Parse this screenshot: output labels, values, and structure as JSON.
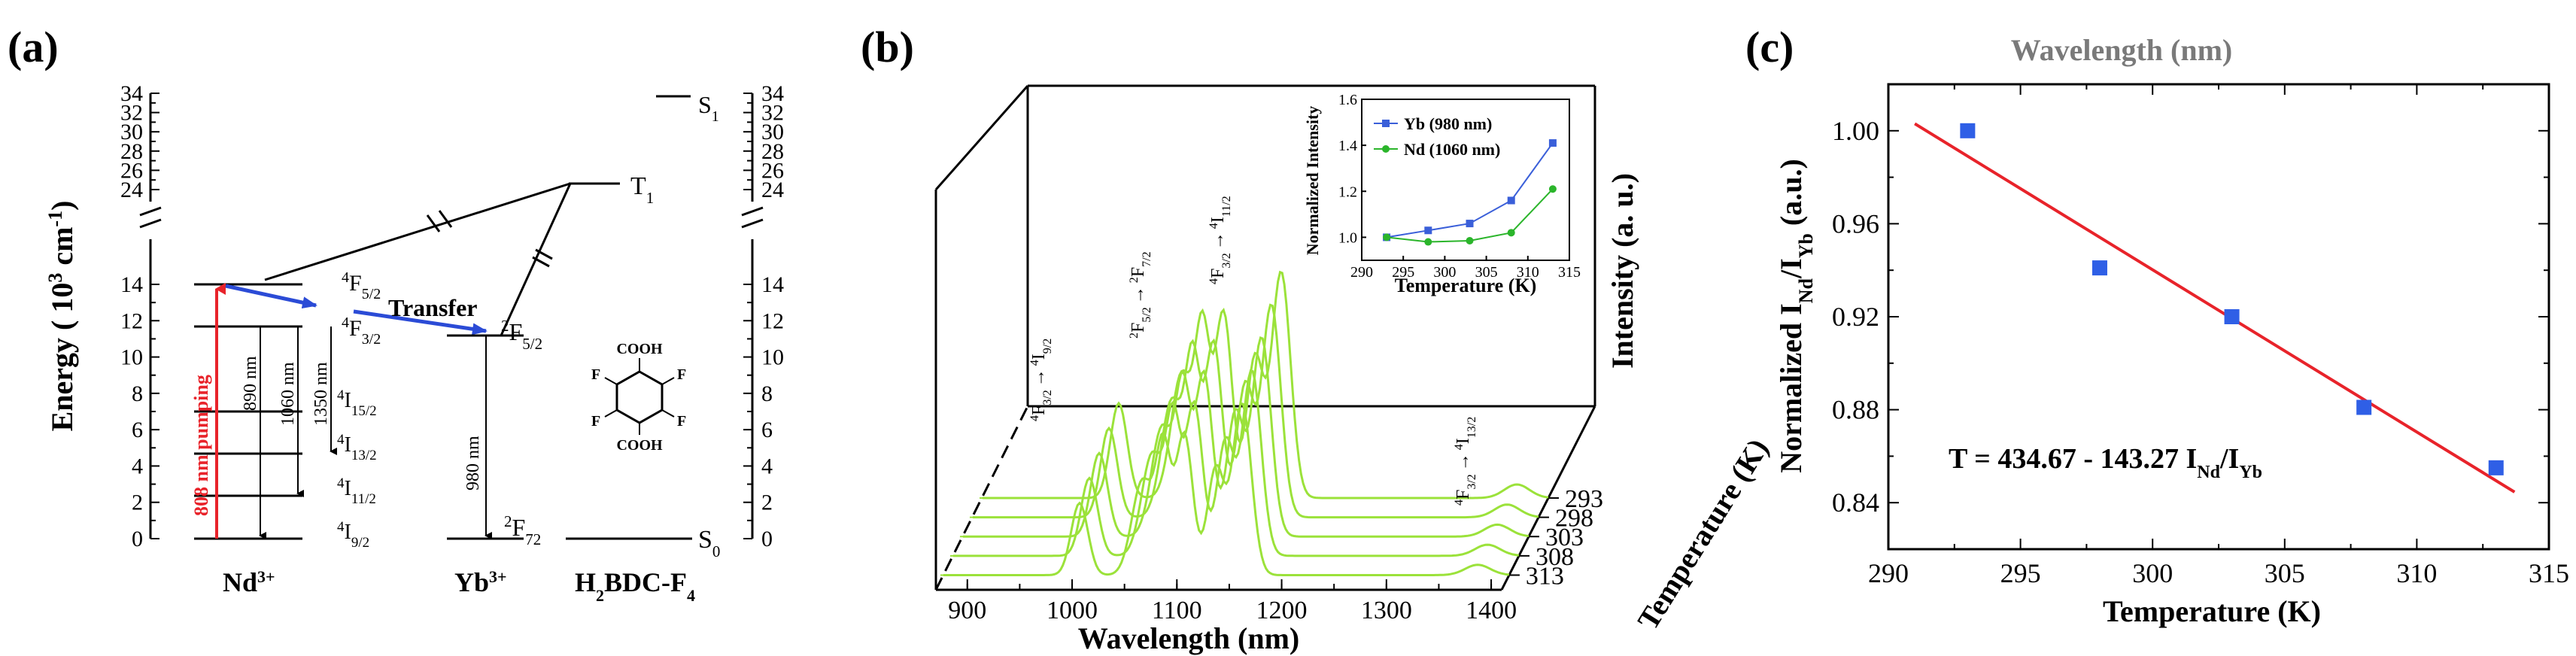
{
  "panel_a": {
    "letter": "(a)",
    "y_label": "Energy ( 10",
    "y_label_exp": "3",
    "y_label_unit": " cm",
    "y_label_unit_exp": "-1",
    "y_label_close": ")",
    "ticks_low": [
      "0",
      "2",
      "4",
      "6",
      "8",
      "10",
      "12",
      "14"
    ],
    "ticks_high": [
      "24",
      "26",
      "28",
      "30",
      "32",
      "34"
    ],
    "pump_label": "808 nm pumping",
    "emission_labels": [
      "890 nm",
      "1060 nm",
      "1350 nm"
    ],
    "yb_emission_label": "980 nm",
    "transfer_label": "Transfer",
    "nd_levels": [
      {
        "base": "4",
        "main": "F",
        "sub": "5/2"
      },
      {
        "base": "4",
        "main": "F",
        "sub": "3/2"
      },
      {
        "base": "4",
        "main": "I",
        "sub": "15/2"
      },
      {
        "base": "4",
        "main": "I",
        "sub": "13/2"
      },
      {
        "base": "4",
        "main": "I",
        "sub": "11/2"
      },
      {
        "base": "4",
        "main": "I",
        "sub": "9/2"
      }
    ],
    "yb_levels": [
      {
        "base": "2",
        "main": "F",
        "sub": "5/2"
      },
      {
        "base": "2",
        "main": "F",
        "sub": "72"
      }
    ],
    "ligand_levels": [
      {
        "main": "S",
        "sub": "1"
      },
      {
        "main": "T",
        "sub": "1"
      },
      {
        "main": "S",
        "sub": "0"
      }
    ],
    "species": [
      {
        "main": "Nd",
        "sup": "3+"
      },
      {
        "main": "Yb",
        "sup": "3+"
      },
      {
        "main": "H",
        "sub": "2",
        "rest": "BDC-F",
        "sub2": "4"
      }
    ],
    "molecule": {
      "acid_group": "COOH",
      "atom": "F"
    }
  },
  "panel_b": {
    "letter": "(b)",
    "x_label": "Wavelength (nm)",
    "x_ticks": [
      "900",
      "1000",
      "1100",
      "1200",
      "1300",
      "1400"
    ],
    "z_label": "Temperature (K)",
    "z_ticks": [
      "293",
      "298",
      "303",
      "308",
      "313"
    ],
    "y_label": "Intensity (a. u.)",
    "transitions": [
      {
        "from_base": "4",
        "from_main": "F",
        "from_sub": "3/2",
        "to_base": "4",
        "to_main": "I",
        "to_sub": "9/2"
      },
      {
        "from_base": "2",
        "from_main": "F",
        "from_sub": "5/2",
        "to_base": "2",
        "to_main": "F",
        "to_sub": "7/2"
      },
      {
        "from_base": "4",
        "from_main": "F",
        "from_sub": "3/2",
        "to_base": "4",
        "to_main": "I",
        "to_sub": "11/2"
      },
      {
        "from_base": "4",
        "from_main": "F",
        "from_sub": "3/2",
        "to_base": "4",
        "to_main": "I",
        "to_sub": "13/2"
      }
    ],
    "arrow": "→",
    "line_color": "#9be23a",
    "inset": {
      "x_label": "Temperature  (K)",
      "y_label": "Normalized Intensity",
      "x_ticks": [
        "290",
        "295",
        "300",
        "305",
        "310",
        "315"
      ],
      "y_ticks": [
        "1.0",
        "1.2",
        "1.4",
        "1.6"
      ]
    }
  },
  "panel_c": {
    "letter": "(c)",
    "top_label": "Wavelength (nm)",
    "y_label_main": "Normalized I",
    "y_label_sub1": "Nd",
    "y_label_mid": "/I",
    "y_label_sub2": "Yb",
    "y_label_end": " (a.u.)",
    "equation_main": "T = 434.67 - 143.27 I",
    "equation_sub1": "Nd",
    "equation_mid": "/I",
    "equation_sub2": "Yb"
  },
  "chart_data": [
    {
      "type": "scatter",
      "panel": "b-inset",
      "title": "",
      "xlabel": "Temperature  (K)",
      "ylabel": "Normalized Intensity",
      "xlim": [
        290,
        315
      ],
      "ylim": [
        0.9,
        1.6
      ],
      "series": [
        {
          "name": "Yb (980 nm)",
          "color": "#3a5fd9",
          "marker": "square",
          "x": [
            293,
            298,
            303,
            308,
            313
          ],
          "values": [
            1.0,
            1.03,
            1.06,
            1.16,
            1.41
          ]
        },
        {
          "name": "Nd (1060 nm)",
          "color": "#2bb52b",
          "marker": "circle",
          "x": [
            293,
            298,
            303,
            308,
            313
          ],
          "values": [
            1.0,
            0.98,
            0.985,
            1.02,
            1.21
          ]
        }
      ]
    },
    {
      "type": "line",
      "panel": "b",
      "title": "",
      "xlabel": "Wavelength (nm)",
      "ylabel": "Intensity (a. u.)",
      "zlabel": "Temperature (K)",
      "xlim": [
        870,
        1410
      ],
      "temperatures": [
        293,
        298,
        303,
        308,
        313
      ],
      "peaks_nm": [
        1000,
        1060,
        1080,
        1100,
        1130,
        1155,
        1380
      ],
      "peaks_rel": [
        0.42,
        0.55,
        0.72,
        0.82,
        0.62,
        1.0,
        0.06
      ],
      "temperature_scale": [
        1.0,
        0.94,
        0.88,
        0.82,
        0.76
      ]
    },
    {
      "type": "scatter",
      "panel": "c",
      "title": "",
      "xlabel": "Temperature  (K)",
      "ylabel": "Normalized I_Nd/I_Yb (a.u.)",
      "xlim": [
        290,
        315
      ],
      "ylim": [
        0.82,
        1.02
      ],
      "x_ticks": [
        "290",
        "295",
        "300",
        "305",
        "310",
        "315"
      ],
      "y_ticks": [
        "0.84",
        "0.88",
        "0.92",
        "0.96",
        "1.00"
      ],
      "series": [
        {
          "name": "data",
          "color": "#2f5fe6",
          "marker": "square",
          "x": [
            293,
            298,
            303,
            308,
            313
          ],
          "values": [
            1.0,
            0.941,
            0.92,
            0.881,
            0.855
          ]
        }
      ],
      "fit": {
        "slope": -0.00698,
        "intercept": 3.0342,
        "x_range": [
          291,
          313.7
        ],
        "color": "#e8232a"
      }
    }
  ]
}
